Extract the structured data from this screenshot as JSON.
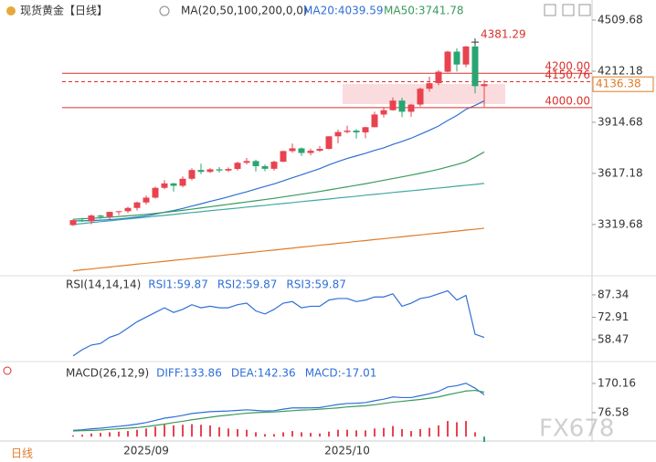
{
  "header": {
    "symbol": "现货黄金",
    "period": "【日线】",
    "ma_label": "MA(20,50,100,200,0,0)",
    "ma20": "MA20:4039.59",
    "ma50": "MA50:3741.78"
  },
  "chart_data": [
    {
      "type": "candlestick",
      "categories": [
        null,
        null,
        null,
        null,
        null,
        null,
        null,
        null,
        "2025/09",
        null,
        null,
        null,
        null,
        null,
        null,
        null,
        null,
        null,
        null,
        null,
        null,
        null,
        null,
        null,
        null,
        null,
        null,
        null,
        null,
        null,
        "2025/10",
        null,
        null,
        null,
        null,
        null,
        null,
        null,
        null,
        null,
        null,
        null,
        null,
        null,
        null,
        null
      ],
      "open": [
        3316,
        3345,
        3338,
        3372,
        3365,
        3393,
        3397,
        3416,
        3448,
        3476,
        3533,
        3559,
        3545,
        3586,
        3637,
        3626,
        3641,
        3634,
        3643,
        3679,
        3689,
        3659,
        3644,
        3685,
        3747,
        3763,
        3736,
        3749,
        3760,
        3833,
        3858,
        3866,
        3856,
        3886,
        3960,
        3985,
        4041,
        3976,
        4018,
        4110,
        4142,
        4209,
        4326,
        4251,
        4356,
        4125
      ],
      "high": [
        3350,
        3358,
        3378,
        3376,
        3394,
        3398,
        3423,
        3453,
        3489,
        3540,
        3578,
        3562,
        3600,
        3647,
        3674,
        3647,
        3654,
        3652,
        3685,
        3707,
        3697,
        3669,
        3691,
        3750,
        3791,
        3768,
        3761,
        3777,
        3834,
        3872,
        3895,
        3875,
        3889,
        3977,
        4000,
        4059,
        4058,
        4022,
        4117,
        4180,
        4218,
        4331,
        4345,
        4359,
        4381.29,
        4161
      ],
      "low": [
        3311,
        3334,
        3321,
        3352,
        3351,
        3375,
        3386,
        3401,
        3436,
        3470,
        3525,
        3511,
        3536,
        3577,
        3613,
        3619,
        3621,
        3626,
        3634,
        3669,
        3628,
        3630,
        3633,
        3683,
        3737,
        3718,
        3722,
        3742,
        3757,
        3793,
        3850,
        3820,
        3821,
        3885,
        3943,
        3983,
        3945,
        3947,
        4006,
        4093,
        4130,
        4205,
        4210,
        4235,
        4083,
        4004
      ],
      "close": [
        3345,
        3338,
        3372,
        3365,
        3393,
        3397,
        3416,
        3448,
        3476,
        3533,
        3559,
        3545,
        3586,
        3637,
        3626,
        3641,
        3634,
        3643,
        3679,
        3689,
        3659,
        3644,
        3685,
        3747,
        3763,
        3736,
        3749,
        3760,
        3833,
        3858,
        3866,
        3856,
        3886,
        3960,
        3985,
        4041,
        3976,
        4018,
        4110,
        4142,
        4209,
        4326,
        4251,
        4356,
        4125,
        4136.38
      ],
      "up_color": "#e8434f",
      "down_color": "#2aa571",
      "series": [
        {
          "color": "#2f6fd6",
          "values": [
            3340,
            3341,
            3343,
            3345,
            3348,
            3352,
            3357,
            3363,
            3370,
            3380,
            3391,
            3401,
            3413,
            3427,
            3440,
            3454,
            3467,
            3481,
            3496,
            3510,
            3526,
            3541,
            3556,
            3574,
            3592,
            3609,
            3627,
            3645,
            3667,
            3686,
            3704,
            3719,
            3734,
            3751,
            3766,
            3786,
            3803,
            3822,
            3845,
            3868,
            3893,
            3925,
            3954,
            3990,
            4013,
            4039.59
          ]
        },
        {
          "color": "#3a9a5c",
          "values": [
            3350,
            3353,
            3356,
            3359,
            3362,
            3366,
            3370,
            3374,
            3379,
            3384,
            3390,
            3396,
            3402,
            3409,
            3416,
            3423,
            3430,
            3437,
            3444,
            3451,
            3458,
            3465,
            3472,
            3480,
            3488,
            3496,
            3504,
            3512,
            3521,
            3530,
            3539,
            3548,
            3557,
            3567,
            3577,
            3587,
            3597,
            3607,
            3618,
            3629,
            3641,
            3655,
            3669,
            3685,
            3712,
            3741.78
          ]
        },
        {
          "color": "#3fa9a0",
          "values": [
            3320,
            3325,
            3331,
            3336,
            3341,
            3347,
            3352,
            3357,
            3362,
            3368,
            3373,
            3378,
            3384,
            3389,
            3394,
            3400,
            3405,
            3410,
            3415,
            3421,
            3426,
            3431,
            3437,
            3442,
            3447,
            3453,
            3458,
            3463,
            3468,
            3474,
            3479,
            3484,
            3490,
            3495,
            3500,
            3506,
            3511,
            3516,
            3521,
            3527,
            3532,
            3537,
            3543,
            3548,
            3553,
            3559
          ]
        },
        {
          "color": "#e07b28",
          "values": [
            3050,
            3056,
            3061,
            3067,
            3072,
            3078,
            3083,
            3089,
            3094,
            3100,
            3105,
            3111,
            3116,
            3122,
            3127,
            3133,
            3138,
            3144,
            3149,
            3155,
            3160,
            3166,
            3171,
            3177,
            3182,
            3188,
            3193,
            3199,
            3204,
            3210,
            3215,
            3221,
            3226,
            3232,
            3237,
            3243,
            3248,
            3254,
            3259,
            3265,
            3270,
            3276,
            3281,
            3287,
            3292,
            3298
          ]
        }
      ],
      "ylim": [
        3032,
        4584
      ],
      "yticks": [
        3319.68,
        3617.18,
        3914.68,
        4212.18,
        4509.68
      ],
      "levels": [
        {
          "value": 4200,
          "label": "4200.00"
        },
        4150.76,
        {
          "value": 4000,
          "label": "4000.00"
        }
      ],
      "level_styles": [
        "solid",
        "dashed",
        "solid"
      ],
      "level_color": "#d9302c",
      "high_label": 4381.29,
      "last_price": 4136.38
    },
    {
      "type": "line",
      "title": "RSI(14,14,14)",
      "legend": [
        "RSI1:59.87",
        "RSI2:59.87",
        "RSI3:59.87"
      ],
      "legend_color": "#2f6fd6",
      "series": [
        {
          "color": "#2f6fd6",
          "values": [
            48,
            52,
            55,
            56,
            60,
            62,
            66,
            70,
            73,
            76,
            79,
            76,
            78,
            81,
            79,
            80,
            79,
            79,
            81,
            82,
            77,
            75,
            78,
            82,
            83,
            79,
            80,
            80,
            84,
            85,
            85,
            83,
            84,
            86,
            86,
            88,
            80,
            82,
            85,
            86,
            88,
            90,
            84,
            87,
            62,
            59.87
          ]
        }
      ],
      "ylim": [
        46.7,
        97.9
      ],
      "yticks": [
        58.47,
        72.91,
        87.34
      ]
    },
    {
      "type": "macd",
      "title": "MACD(26,12,9)",
      "legend": [
        "DIFF:133.86",
        "DEA:142.36",
        "MACD:-17.01"
      ],
      "legend_color": "#2f6fd6",
      "series": [
        {
          "color": "#2f6fd6",
          "values": [
            20,
            22,
            25,
            27,
            30,
            33,
            36,
            40,
            45,
            52,
            59,
            63,
            68,
            74,
            77,
            80,
            81,
            82,
            84,
            86,
            84,
            82,
            83,
            88,
            92,
            92,
            92,
            93,
            98,
            103,
            106,
            107,
            109,
            115,
            120,
            127,
            125,
            125,
            131,
            137,
            145,
            159,
            163,
            171,
            155,
            133.86
          ]
        },
        {
          "color": "#3a9a5c",
          "values": [
            18,
            19,
            20,
            21,
            23,
            25,
            27,
            29,
            32,
            36,
            40,
            45,
            49,
            54,
            58,
            62,
            66,
            69,
            72,
            75,
            77,
            78,
            79,
            81,
            83,
            85,
            86,
            88,
            90,
            92,
            95,
            97,
            99,
            102,
            106,
            110,
            113,
            116,
            119,
            123,
            127,
            134,
            140,
            146,
            148,
            142.36
          ]
        }
      ],
      "histogram": [
        4,
        6,
        10,
        12,
        14,
        16,
        18,
        22,
        26,
        32,
        38,
        36,
        38,
        40,
        38,
        36,
        30,
        26,
        24,
        22,
        14,
        8,
        8,
        14,
        18,
        14,
        12,
        10,
        16,
        22,
        22,
        20,
        20,
        26,
        28,
        34,
        24,
        18,
        24,
        28,
        36,
        50,
        46,
        50,
        14,
        -17.01
      ],
      "up_color": "#e8434f",
      "down_color": "#2aa571",
      "ylim": [
        -11.1,
        234.5
      ],
      "yticks": [
        76.58,
        170.16
      ]
    }
  ],
  "footer": {
    "period_button": "日线",
    "watermark": "FX678"
  }
}
